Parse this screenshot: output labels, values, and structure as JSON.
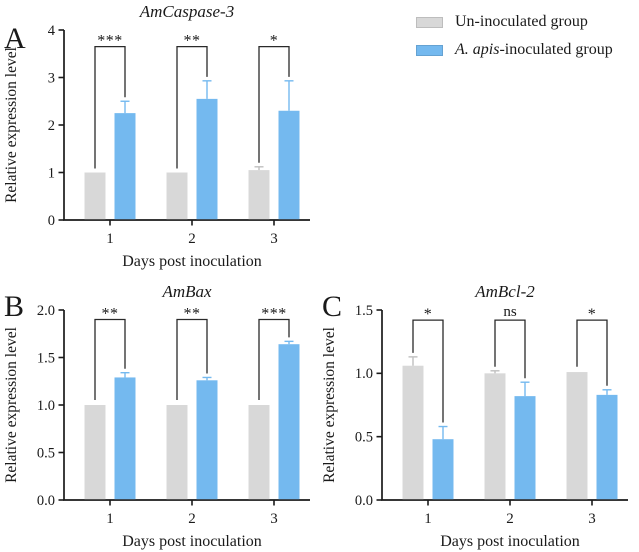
{
  "figure": {
    "background": "#ffffff",
    "colors": {
      "uninoculated": "#d8d8d8",
      "inoculated": "#74b9ef",
      "uninoculated_error": "#bfbfbf",
      "inoculated_error": "#74b9ef",
      "axis": "#1a1a1a",
      "bracket": "#2a2a2a"
    },
    "legend": {
      "items": [
        {
          "label_italic": "",
          "label_rest": "Un-inoculated group",
          "color": "#d8d8d8"
        },
        {
          "label_italic": "A. apis",
          "label_rest": "-inoculated group",
          "color": "#74b9ef"
        }
      ]
    }
  },
  "chart_data": [
    {
      "type": "bar",
      "panel": "A",
      "title": "AmCaspase-3",
      "xlabel": "Days post inoculation",
      "ylabel": "Relative expression level",
      "ylim": [
        0,
        4
      ],
      "yticks": [
        "0",
        "1",
        "2",
        "3",
        "4"
      ],
      "categories": [
        "1",
        "2",
        "3"
      ],
      "grid": false,
      "legend_position": "none",
      "series": [
        {
          "name": "Un-inoculated group",
          "values": [
            1.0,
            1.0,
            1.05
          ],
          "errors": [
            0,
            0,
            0.07
          ]
        },
        {
          "name": "A. apis-inoculated group",
          "values": [
            2.25,
            2.55,
            2.3
          ],
          "errors": [
            0.25,
            0.38,
            0.63
          ]
        }
      ],
      "significance": [
        {
          "group": "1",
          "label": "***",
          "top": 3.65
        },
        {
          "group": "2",
          "label": "**",
          "top": 3.65
        },
        {
          "group": "3",
          "label": "*",
          "top": 3.65
        }
      ]
    },
    {
      "type": "bar",
      "panel": "B",
      "title": "AmBax",
      "xlabel": "Days post inoculation",
      "ylabel": "Relative expression level",
      "ylim": [
        0,
        2.0
      ],
      "yticks": [
        "0.0",
        "0.5",
        "1.0",
        "1.5",
        "2.0"
      ],
      "categories": [
        "1",
        "2",
        "3"
      ],
      "grid": false,
      "legend_position": "none",
      "series": [
        {
          "name": "Un-inoculated group",
          "values": [
            1.0,
            1.0,
            1.0
          ],
          "errors": [
            0.01,
            0.01,
            0.01
          ]
        },
        {
          "name": "A. apis-inoculated group",
          "values": [
            1.29,
            1.26,
            1.64
          ],
          "errors": [
            0.05,
            0.03,
            0.03
          ]
        }
      ],
      "significance": [
        {
          "group": "1",
          "label": "**",
          "top": 1.9
        },
        {
          "group": "2",
          "label": "**",
          "top": 1.9
        },
        {
          "group": "3",
          "label": "***",
          "top": 1.9
        }
      ]
    },
    {
      "type": "bar",
      "panel": "C",
      "title": "AmBcl-2",
      "xlabel": "Days post inoculation",
      "ylabel": "Relative expression level",
      "ylim": [
        0,
        1.5
      ],
      "yticks": [
        "0.0",
        "0.5",
        "1.0",
        "1.5"
      ],
      "categories": [
        "1",
        "2",
        "3"
      ],
      "grid": false,
      "legend_position": "none",
      "series": [
        {
          "name": "Un-inoculated group",
          "values": [
            1.06,
            1.0,
            1.01
          ],
          "errors": [
            0.07,
            0.02,
            0.01
          ]
        },
        {
          "name": "A. apis-inoculated group",
          "values": [
            0.48,
            0.82,
            0.83
          ],
          "errors": [
            0.1,
            0.11,
            0.04
          ]
        }
      ],
      "significance": [
        {
          "group": "1",
          "label": "*",
          "top": 1.42
        },
        {
          "group": "2",
          "label": "ns",
          "top": 1.42
        },
        {
          "group": "3",
          "label": "*",
          "top": 1.42
        }
      ]
    }
  ]
}
